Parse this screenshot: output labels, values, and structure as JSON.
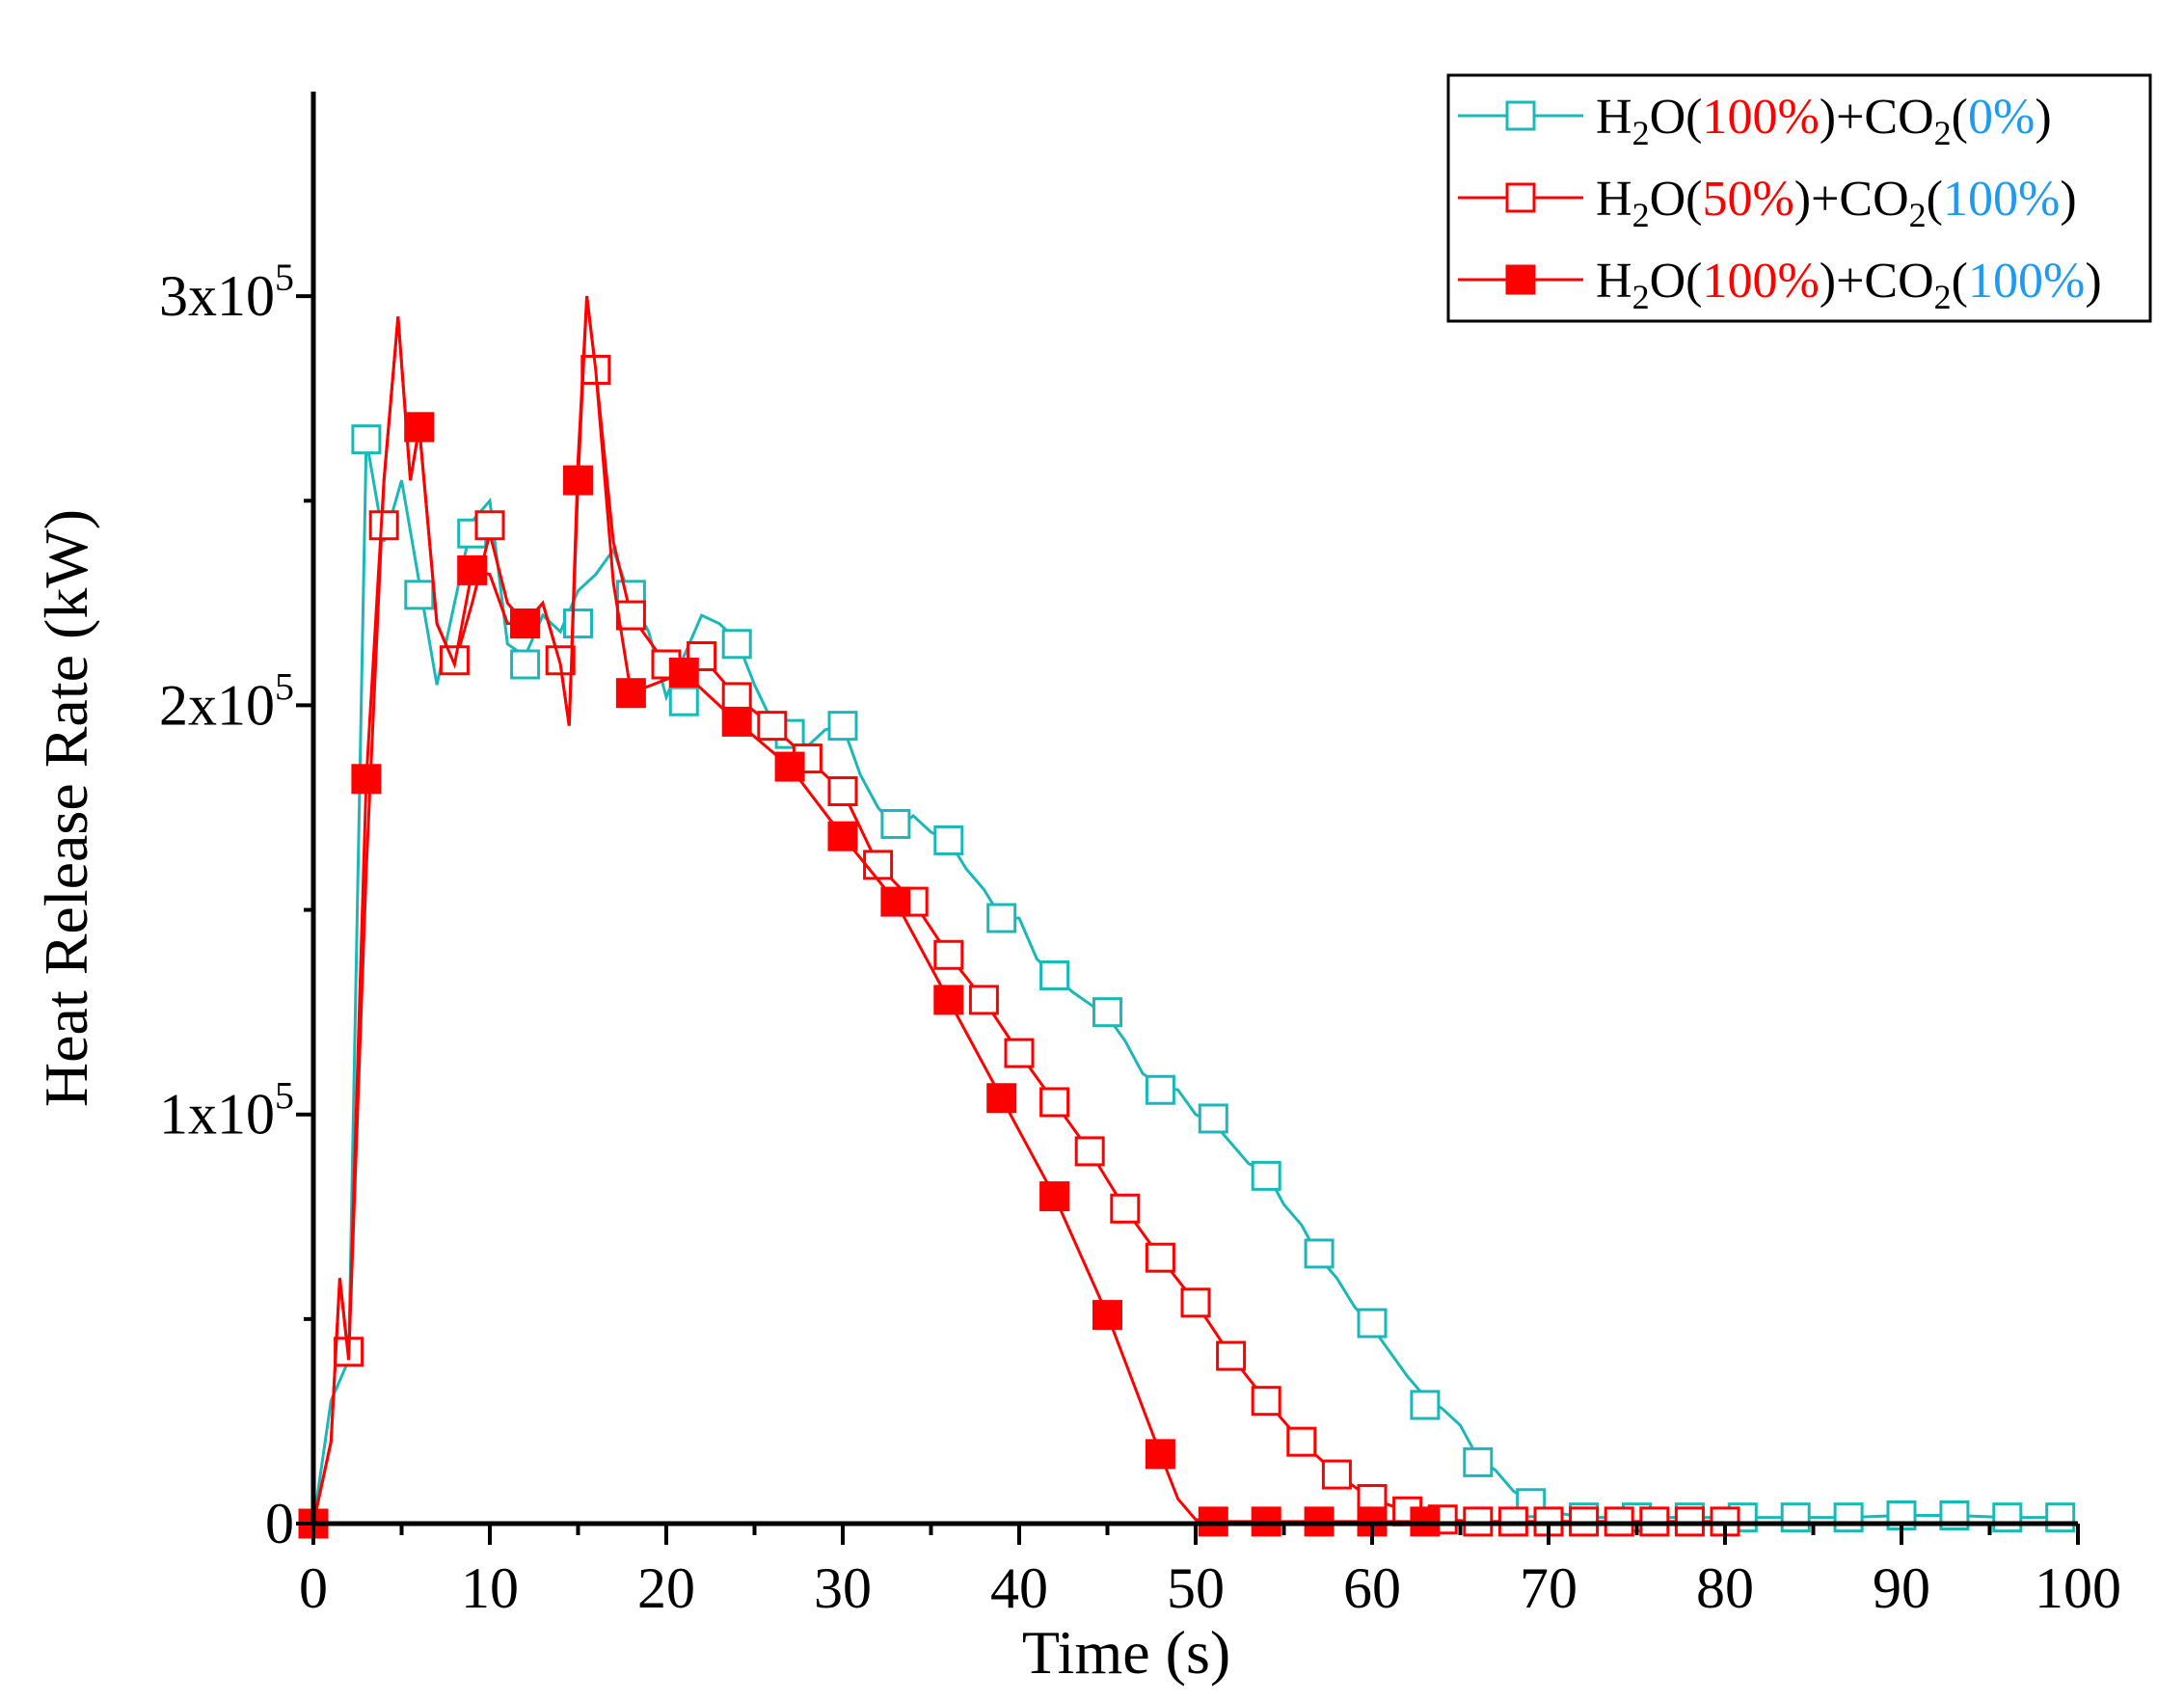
{
  "chart_data": {
    "type": "line",
    "title": "",
    "xlabel": "Time (s)",
    "ylabel": "Heat Release Rate (kW)",
    "xlim": [
      0,
      100
    ],
    "ylim": [
      0,
      350000
    ],
    "grid": false,
    "legend_position": "top-right",
    "x_ticks": [
      0,
      10,
      20,
      30,
      40,
      50,
      60,
      70,
      80,
      90,
      100
    ],
    "x_tick_labels": [
      "0",
      "10",
      "20",
      "30",
      "40",
      "50",
      "60",
      "70",
      "80",
      "90",
      "100"
    ],
    "y_ticks": [
      0,
      100000,
      200000,
      300000
    ],
    "y_tick_labels": [
      {
        "base": "0",
        "exp": ""
      },
      {
        "base": "1x10",
        "exp": "5"
      },
      {
        "base": "2x10",
        "exp": "5"
      },
      {
        "base": "3x10",
        "exp": "5"
      }
    ],
    "colors": {
      "h2o_label": "#ff0000",
      "co2_label": "#1e9bf0",
      "axis": "#000000"
    },
    "series": [
      {
        "legend": [
          {
            "text": "H",
            "color": ""
          },
          {
            "sub": "2"
          },
          {
            "text": "O(",
            "color": ""
          },
          {
            "text": "100%",
            "color": "#ff0000"
          },
          {
            "text": ")+CO",
            "color": ""
          },
          {
            "sub": "2"
          },
          {
            "text": "(",
            "color": ""
          },
          {
            "text": "0%",
            "color": "#1e9bf0"
          },
          {
            "text": ")",
            "color": ""
          }
        ],
        "color": "#1ab8b8",
        "marker": "square-open",
        "x": [
          0,
          1,
          2,
          3,
          4,
          5,
          6,
          7,
          8,
          9,
          10,
          11,
          12,
          13,
          14,
          15,
          16,
          17,
          18,
          19,
          20,
          21,
          22,
          23,
          24,
          25,
          26,
          27,
          28,
          29,
          30,
          31,
          32,
          33,
          34,
          35,
          36,
          37,
          38,
          39,
          40,
          41,
          42,
          43,
          44,
          45,
          46,
          47,
          48,
          49,
          50,
          51,
          52,
          53,
          54,
          55,
          56,
          57,
          58,
          59,
          60,
          61,
          62,
          63,
          64,
          65,
          66,
          67,
          68,
          69,
          70,
          72,
          75,
          78,
          81,
          84,
          87,
          90,
          93,
          96,
          99
        ],
        "y": [
          0,
          30000,
          40000,
          265000,
          240000,
          255000,
          230000,
          205000,
          225000,
          245000,
          250000,
          215000,
          212000,
          222000,
          218000,
          228000,
          232000,
          238000,
          226000,
          218000,
          202000,
          212000,
          222000,
          220000,
          216000,
          205000,
          196000,
          193000,
          190000,
          194000,
          195000,
          183000,
          175000,
          170000,
          173000,
          169000,
          167000,
          160000,
          155000,
          148000,
          148000,
          138000,
          134000,
          130000,
          127000,
          124000,
          118000,
          110000,
          107000,
          106000,
          100000,
          98000,
          93000,
          88000,
          86000,
          78000,
          73000,
          65000,
          60000,
          53000,
          48000,
          42000,
          36000,
          31000,
          28000,
          24000,
          16000,
          13000,
          8000,
          5000,
          3000,
          1500,
          1500,
          1500,
          1500,
          1500,
          1500,
          2000,
          2000,
          1500,
          1500
        ],
        "marker_x": [
          0,
          3,
          6,
          9,
          12,
          15,
          18,
          21,
          24,
          27,
          30,
          33,
          36,
          39,
          42,
          45,
          48,
          51,
          54,
          57,
          60,
          63,
          66,
          69,
          72,
          75,
          78,
          81,
          84,
          87,
          90,
          93,
          96,
          99
        ],
        "marker_y": [
          0,
          265000,
          227000,
          242000,
          210000,
          220000,
          227000,
          201000,
          215000,
          193000,
          195000,
          171000,
          167000,
          148000,
          134000,
          125000,
          106000,
          99000,
          85000,
          66000,
          49000,
          29000,
          15000,
          5000,
          1500,
          1500,
          1500,
          1500,
          1500,
          1500,
          2000,
          2000,
          1500,
          1500
        ]
      },
      {
        "legend": [
          {
            "text": "H",
            "color": ""
          },
          {
            "sub": "2"
          },
          {
            "text": "O(",
            "color": ""
          },
          {
            "text": "50%",
            "color": "#ff0000"
          },
          {
            "text": ")+CO",
            "color": ""
          },
          {
            "sub": "2"
          },
          {
            "text": "(",
            "color": ""
          },
          {
            "text": "100%",
            "color": "#1e9bf0"
          },
          {
            "text": ")",
            "color": ""
          }
        ],
        "color": "#ff0000",
        "marker": "square-open",
        "x": [
          0,
          1,
          1.5,
          2,
          3,
          4,
          4.8,
          5.5,
          6,
          7,
          8,
          9,
          10,
          11,
          12,
          13,
          14,
          14.5,
          15,
          15.5,
          16,
          17,
          18,
          20,
          22,
          24,
          26,
          28,
          30,
          32,
          34,
          36,
          38,
          40,
          42,
          44,
          46,
          48,
          50,
          52,
          54,
          56,
          58,
          60,
          62,
          64,
          66,
          68,
          70,
          72,
          74,
          76,
          78,
          80
        ],
        "y": [
          0,
          20000,
          60000,
          40000,
          160000,
          255000,
          295000,
          255000,
          268000,
          220000,
          210000,
          225000,
          242000,
          225000,
          220000,
          225000,
          210000,
          195000,
          260000,
          300000,
          282000,
          240000,
          222000,
          210000,
          212000,
          202000,
          195000,
          187000,
          179000,
          161000,
          152000,
          139000,
          128000,
          115000,
          103000,
          91000,
          77000,
          65000,
          54000,
          41000,
          30000,
          20000,
          12000,
          6000,
          3000,
          1000,
          500,
          500,
          500,
          500,
          500,
          500,
          500,
          500
        ],
        "marker_x": [
          0,
          2,
          4,
          6,
          8,
          10,
          12,
          14,
          16,
          18,
          20,
          22,
          24,
          26,
          28,
          30,
          32,
          34,
          36,
          38,
          40,
          42,
          44,
          46,
          48,
          50,
          52,
          54,
          56,
          58,
          60,
          62,
          64,
          66,
          68,
          70,
          72,
          74,
          76,
          78,
          80
        ],
        "marker_y": [
          0,
          42000,
          244000,
          268000,
          211000,
          244000,
          220000,
          211000,
          282000,
          222000,
          210000,
          212000,
          202000,
          195000,
          187000,
          179000,
          161000,
          152000,
          139000,
          128000,
          115000,
          103000,
          91000,
          77000,
          65000,
          54000,
          41000,
          30000,
          20000,
          12000,
          6000,
          3000,
          1000,
          500,
          500,
          500,
          500,
          500,
          500,
          500,
          500
        ]
      },
      {
        "legend": [
          {
            "text": "H",
            "color": ""
          },
          {
            "sub": "2"
          },
          {
            "text": "O(",
            "color": ""
          },
          {
            "text": "100%",
            "color": "#ff0000"
          },
          {
            "text": ")+CO",
            "color": ""
          },
          {
            "sub": "2"
          },
          {
            "text": "(",
            "color": ""
          },
          {
            "text": "100%",
            "color": "#1e9bf0"
          },
          {
            "text": ")",
            "color": ""
          }
        ],
        "color": "#ff0000",
        "marker": "square-filled",
        "x": [
          0,
          1,
          1.5,
          2,
          3,
          4,
          4.8,
          5.5,
          6,
          7,
          8,
          9,
          10,
          11,
          12,
          13,
          14,
          14.5,
          15,
          15.5,
          16,
          17,
          18,
          21,
          24,
          27,
          30,
          33,
          36,
          39,
          42,
          45,
          48,
          49,
          50,
          51,
          54,
          57,
          60,
          63
        ],
        "y": [
          0,
          20000,
          60000,
          40000,
          182000,
          255000,
          295000,
          255000,
          268000,
          220000,
          210000,
          233000,
          232000,
          220000,
          220000,
          225000,
          210000,
          195000,
          255000,
          300000,
          282000,
          230000,
          203000,
          208000,
          196000,
          185000,
          168000,
          152000,
          128000,
          104000,
          80000,
          51000,
          17000,
          6000,
          1000,
          500,
          500,
          500,
          500,
          500
        ],
        "marker_x": [
          0,
          3,
          6,
          9,
          12,
          15,
          18,
          21,
          24,
          27,
          30,
          33,
          36,
          39,
          42,
          45,
          48,
          51,
          54,
          57,
          60,
          63
        ],
        "marker_y": [
          0,
          182000,
          268000,
          233000,
          220000,
          255000,
          203000,
          208000,
          196000,
          185000,
          168000,
          152000,
          128000,
          104000,
          80000,
          51000,
          17000,
          500,
          500,
          500,
          500,
          500
        ]
      }
    ]
  }
}
